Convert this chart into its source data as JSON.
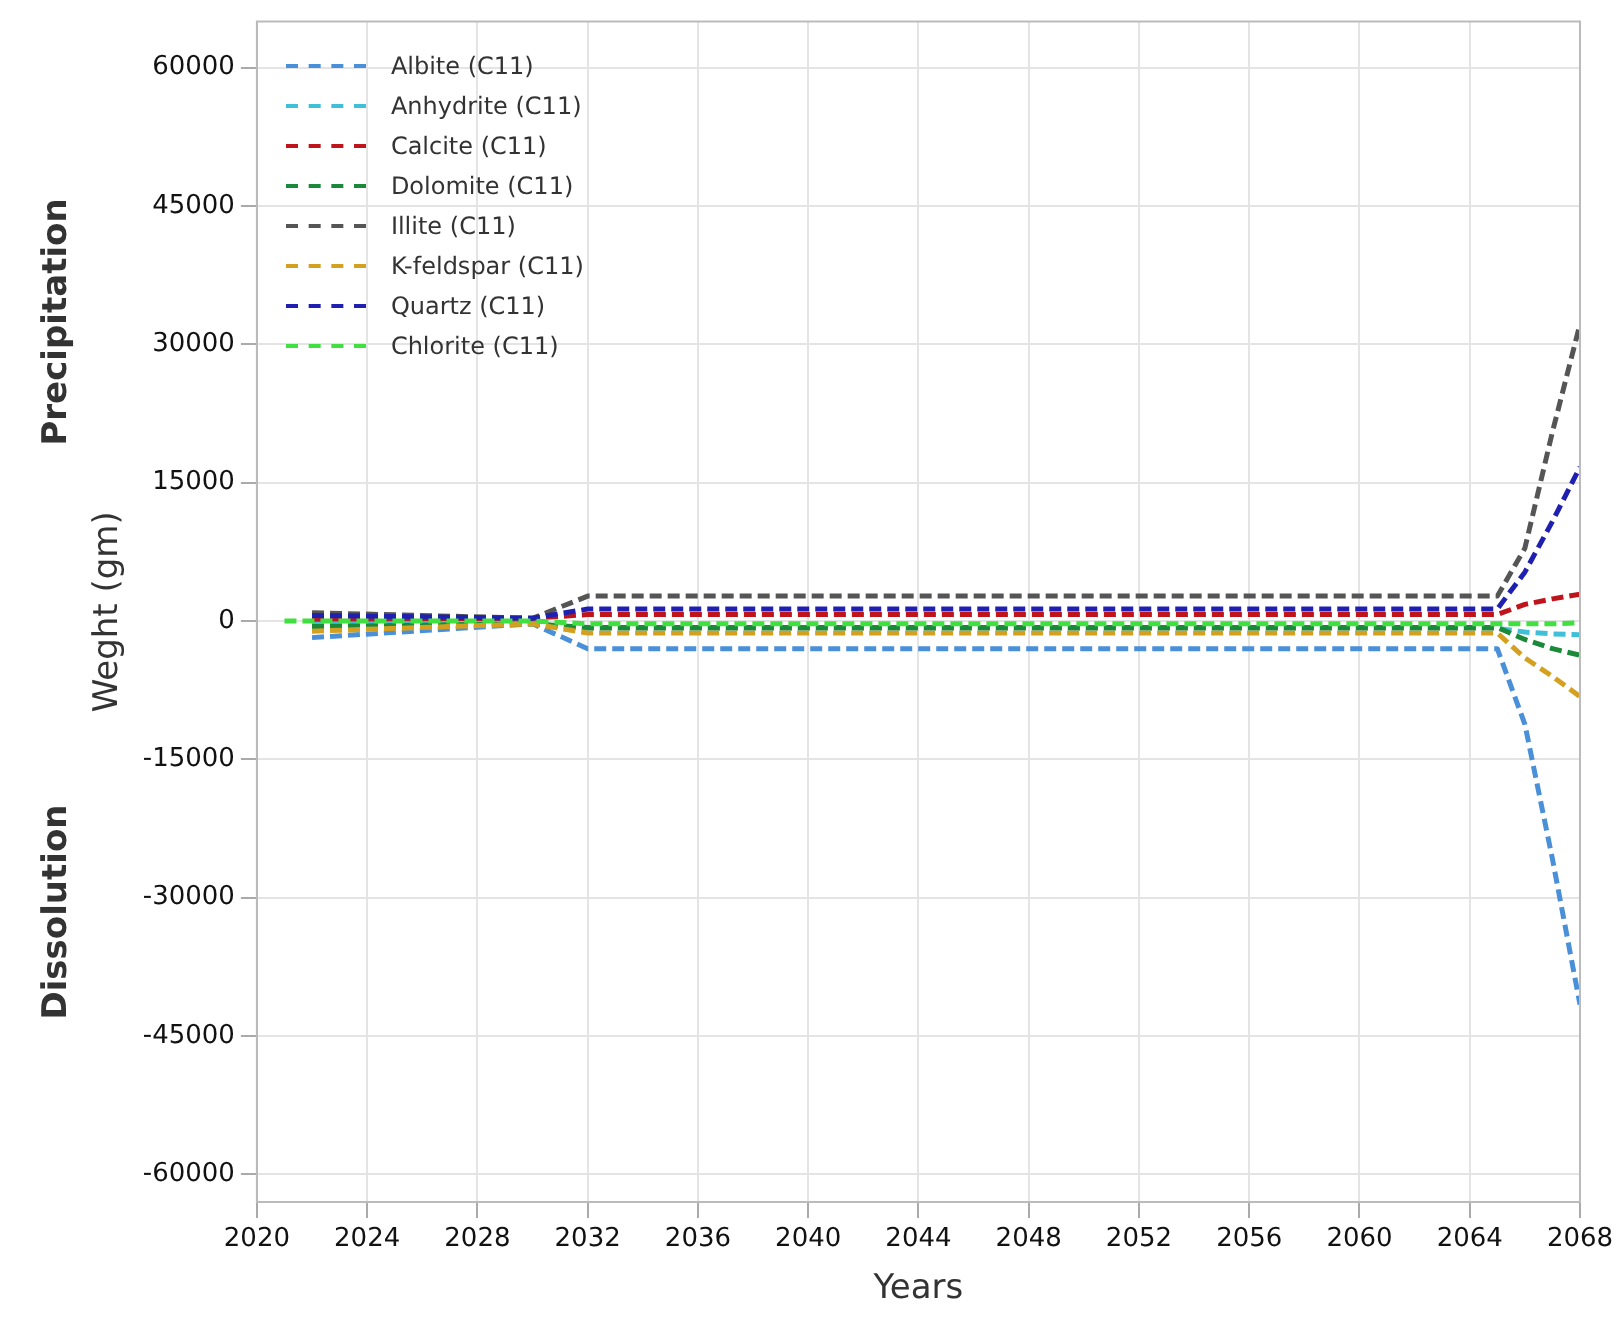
{
  "chart_data": {
    "type": "line",
    "xlabel": "Years",
    "ylabel": "Weght (gm)",
    "annotations": [
      "Precipitation",
      "Dissolution"
    ],
    "x": [
      2022,
      2030,
      2032,
      2065,
      2066,
      2067,
      2068
    ],
    "series": [
      {
        "name": "Albite (C11)",
        "color": "#4a90d9",
        "values": [
          -1800,
          -300,
          -3000,
          -3000,
          -11200,
          -25800,
          -41600
        ]
      },
      {
        "name": "Anhydrite (C11)",
        "color": "#40c0d8",
        "values": [
          -300,
          -300,
          -800,
          -800,
          -1200,
          -1400,
          -1500
        ]
      },
      {
        "name": "Calcite (C11)",
        "color": "#c0141c",
        "values": [
          200,
          300,
          700,
          700,
          1800,
          2400,
          2900
        ]
      },
      {
        "name": "Dolomite (C11)",
        "color": "#1a8a3a",
        "values": [
          -600,
          -300,
          -700,
          -700,
          -2000,
          -3000,
          -3700
        ]
      },
      {
        "name": "Illite (C11)",
        "color": "#555555",
        "values": [
          900,
          300,
          2700,
          2700,
          7900,
          20500,
          32200
        ]
      },
      {
        "name": "K-feldspar (C11)",
        "color": "#d4a020",
        "values": [
          -1100,
          -300,
          -1300,
          -1300,
          -4000,
          -6000,
          -8200
        ]
      },
      {
        "name": "Quartz (C11)",
        "color": "#2020b0",
        "values": [
          600,
          300,
          1300,
          1300,
          5300,
          10800,
          16700
        ]
      },
      {
        "name": "Chlorite (C11)",
        "color": "#40e040",
        "x": [
          2021,
          2030,
          2032,
          2065,
          2066,
          2067,
          2068
        ],
        "values": [
          0,
          0,
          -300,
          -300,
          -300,
          -300,
          -200
        ]
      }
    ],
    "xlim": [
      2020,
      2068
    ],
    "ylim": [
      -63000,
      65000
    ],
    "xticks": [
      2020,
      2024,
      2028,
      2032,
      2036,
      2040,
      2044,
      2048,
      2052,
      2056,
      2060,
      2064,
      2068
    ],
    "yticks": [
      -60000,
      -45000,
      -30000,
      -15000,
      0,
      15000,
      30000,
      45000,
      60000
    ],
    "grid": true,
    "legend": "top left",
    "line_style": "dashed"
  }
}
